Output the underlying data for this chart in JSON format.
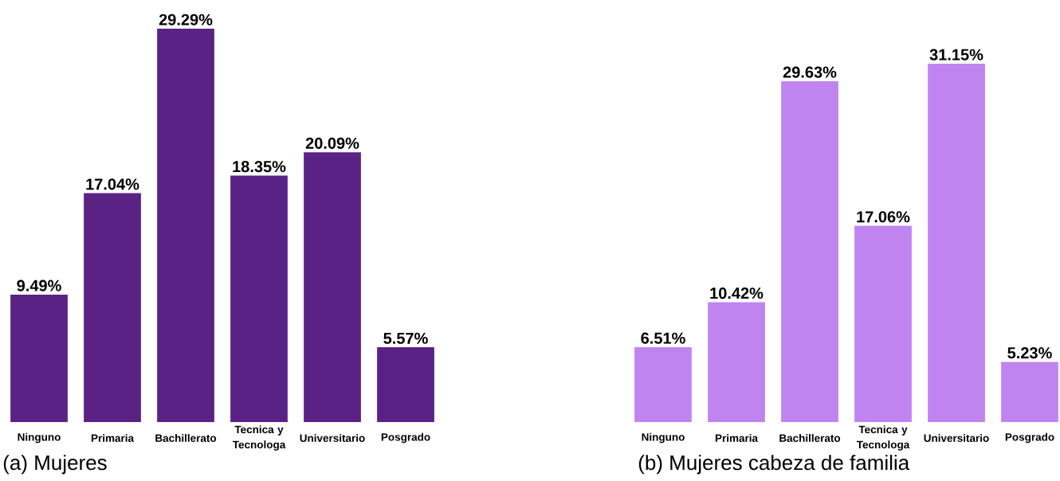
{
  "chart_data": [
    {
      "type": "bar",
      "title": "(a) Mujeres",
      "categories": [
        "Ninguno",
        "Primaria",
        "Bachillerato",
        "Tecnica y Tecnologa",
        "Universitario",
        "Posgrado"
      ],
      "values": [
        9.49,
        17.04,
        29.29,
        18.35,
        20.09,
        5.57
      ],
      "value_labels": [
        "9.49%",
        "17.04%",
        "29.29%",
        "18.35%",
        "20.09%",
        "5.57%"
      ],
      "color": "#5b2286",
      "tick_labels": "x"
    },
    {
      "type": "bar",
      "title": "(b) Mujeres cabeza de familia",
      "categories": [
        "Ninguno",
        "Primaria",
        "Bachillerato",
        "Tecnica y Tecnologa",
        "Universitario",
        "Posgrado"
      ],
      "values": [
        6.51,
        10.42,
        29.63,
        17.06,
        31.15,
        5.23
      ],
      "value_labels": [
        "6.51%",
        "10.42%",
        "29.63%",
        "17.06%",
        "31.15%",
        "5.23%"
      ],
      "color": "#c084f0",
      "tick_labels": "x"
    }
  ]
}
